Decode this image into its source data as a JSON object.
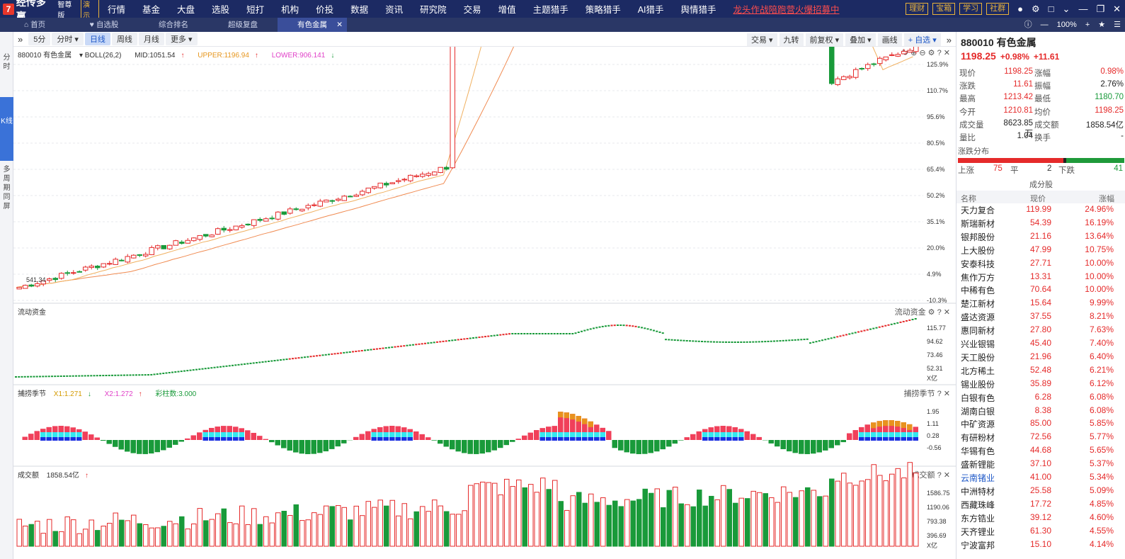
{
  "app": {
    "logo_letter": "7",
    "name": "经传多赢",
    "edition": "智尊版",
    "demo": "演示"
  },
  "nav": {
    "items": [
      "行情",
      "基金",
      "大盘",
      "选股",
      "短打",
      "机构",
      "价投",
      "数据",
      "资讯",
      "研究院",
      "交易",
      "增值",
      "主题猎手",
      "策略猎手",
      "AI猎手",
      "舆情猎手"
    ],
    "promo": "龙头作战陪跑营火爆招募中"
  },
  "topright": {
    "buttons": [
      "理财",
      "宝箱",
      "学习",
      "社群"
    ],
    "zoom": "100%"
  },
  "tabs": [
    {
      "label": "首页",
      "icon": "home-icon"
    },
    {
      "label": "自选股",
      "icon": "heart-icon"
    },
    {
      "label": "综合排名"
    },
    {
      "label": "超级复盘"
    },
    {
      "label": "有色金属",
      "active": true
    }
  ],
  "leftside": [
    {
      "label": "分时"
    },
    {
      "label": "K线",
      "active": true
    },
    {
      "label": "多周期同屏"
    }
  ],
  "periods": [
    "5分",
    "分时",
    "日线",
    "周线",
    "月线",
    "更多"
  ],
  "active_period": "日线",
  "right_tools": [
    "交易",
    "九转",
    "前复权",
    "叠加",
    "画线",
    "自选"
  ],
  "main_chart": {
    "name": "880010 有色金属",
    "indicator": "BOLL(26,2)",
    "mid": "MID:1051.54",
    "upper": "UPPER:1196.94",
    "lower": "LOWER:906.141",
    "y_ticks": [
      "125.9%",
      "110.7%",
      "95.6%",
      "80.5%",
      "65.4%",
      "50.2%",
      "35.1%",
      "20.0%",
      "4.9%",
      "-10.3%"
    ],
    "high_label": "1213.42",
    "low_label": "541.34"
  },
  "flow_panel": {
    "title": "流动资金",
    "y_ticks": [
      "115.77",
      "94.62",
      "73.46",
      "52.31"
    ],
    "unit": "X亿"
  },
  "cycle_panel": {
    "title": "捕捞季节",
    "x1": "X1:1.271",
    "x2": "X2:1.272",
    "bars": "彩柱数:3.000",
    "y_ticks": [
      "1.95",
      "1.11",
      "0.28",
      "-0.56"
    ]
  },
  "volume_panel": {
    "title": "成交额",
    "value": "1858.54亿",
    "y_ticks": [
      "1586.75",
      "1190.06",
      "793.38",
      "396.69"
    ],
    "unit": "X亿"
  },
  "quote": {
    "title": "880010 有色金属",
    "price": "1198.25",
    "change_pct": "+0.98%",
    "change": "+11.61",
    "rows": [
      [
        {
          "l": "现价",
          "v": "1198.25",
          "c": "red"
        },
        {
          "l": "涨幅",
          "v": "0.98%",
          "c": "red"
        }
      ],
      [
        {
          "l": "涨跌",
          "v": "11.61",
          "c": "red"
        },
        {
          "l": "振幅",
          "v": "2.76%",
          "c": "blk"
        }
      ],
      [
        {
          "l": "最高",
          "v": "1213.42",
          "c": "red"
        },
        {
          "l": "最低",
          "v": "1180.70",
          "c": "green"
        }
      ],
      [
        {
          "l": "今开",
          "v": "1210.81",
          "c": "red"
        },
        {
          "l": "均价",
          "v": "1198.25",
          "c": "red"
        }
      ],
      [
        {
          "l": "成交量",
          "v": "8623.85万",
          "c": "blk"
        },
        {
          "l": "成交额",
          "v": "1858.54亿",
          "c": "blk"
        }
      ],
      [
        {
          "l": "量比",
          "v": "1.04",
          "c": "blk"
        },
        {
          "l": "换手",
          "v": "-",
          "c": "blk"
        }
      ]
    ],
    "dist_title": "涨跌分布",
    "up_label": "上涨",
    "up": "75",
    "flat_label": "平",
    "flat": "2",
    "down_label": "下跌",
    "down": "41"
  },
  "components": {
    "title": "成分股",
    "headers": [
      "名称",
      "现价",
      "涨幅"
    ],
    "rows": [
      {
        "name": "天力复合",
        "price": "119.99",
        "pct": "24.96%"
      },
      {
        "name": "斯瑞新材",
        "price": "54.39",
        "pct": "16.19%"
      },
      {
        "name": "银邦股份",
        "price": "21.16",
        "pct": "13.64%"
      },
      {
        "name": "上大股份",
        "price": "47.99",
        "pct": "10.75%"
      },
      {
        "name": "安泰科技",
        "price": "27.71",
        "pct": "10.00%"
      },
      {
        "name": "焦作万方",
        "price": "13.31",
        "pct": "10.00%"
      },
      {
        "name": "中稀有色",
        "price": "70.64",
        "pct": "10.00%"
      },
      {
        "name": "楚江新材",
        "price": "15.64",
        "pct": "9.99%"
      },
      {
        "name": "盛达资源",
        "price": "37.55",
        "pct": "8.21%"
      },
      {
        "name": "惠同新材",
        "price": "27.80",
        "pct": "7.63%"
      },
      {
        "name": "兴业银锡",
        "price": "45.40",
        "pct": "7.40%"
      },
      {
        "name": "天工股份",
        "price": "21.96",
        "pct": "6.40%"
      },
      {
        "name": "北方稀土",
        "price": "52.48",
        "pct": "6.21%"
      },
      {
        "name": "锡业股份",
        "price": "35.89",
        "pct": "6.12%"
      },
      {
        "name": "白银有色",
        "price": "6.28",
        "pct": "6.08%"
      },
      {
        "name": "湖南白银",
        "price": "8.38",
        "pct": "6.08%"
      },
      {
        "name": "中矿资源",
        "price": "85.00",
        "pct": "5.85%"
      },
      {
        "name": "有研粉材",
        "price": "72.56",
        "pct": "5.77%"
      },
      {
        "name": "华锡有色",
        "price": "44.68",
        "pct": "5.65%"
      },
      {
        "name": "盛新锂能",
        "price": "37.10",
        "pct": "5.37%"
      },
      {
        "name": "云南锗业",
        "price": "41.00",
        "pct": "5.34%",
        "blue": true
      },
      {
        "name": "中洲特材",
        "price": "25.58",
        "pct": "5.09%"
      },
      {
        "name": "西藏珠峰",
        "price": "17.72",
        "pct": "4.85%"
      },
      {
        "name": "东方锆业",
        "price": "39.12",
        "pct": "4.60%"
      },
      {
        "name": "天齐锂业",
        "price": "61.30",
        "pct": "4.55%"
      },
      {
        "name": "宁波富邦",
        "price": "15.10",
        "pct": "4.14%"
      }
    ]
  },
  "colors": {
    "up": "#e52a2a",
    "down": "#199a3a",
    "nav": "#1c2a63",
    "accent": "#3a72d8"
  }
}
